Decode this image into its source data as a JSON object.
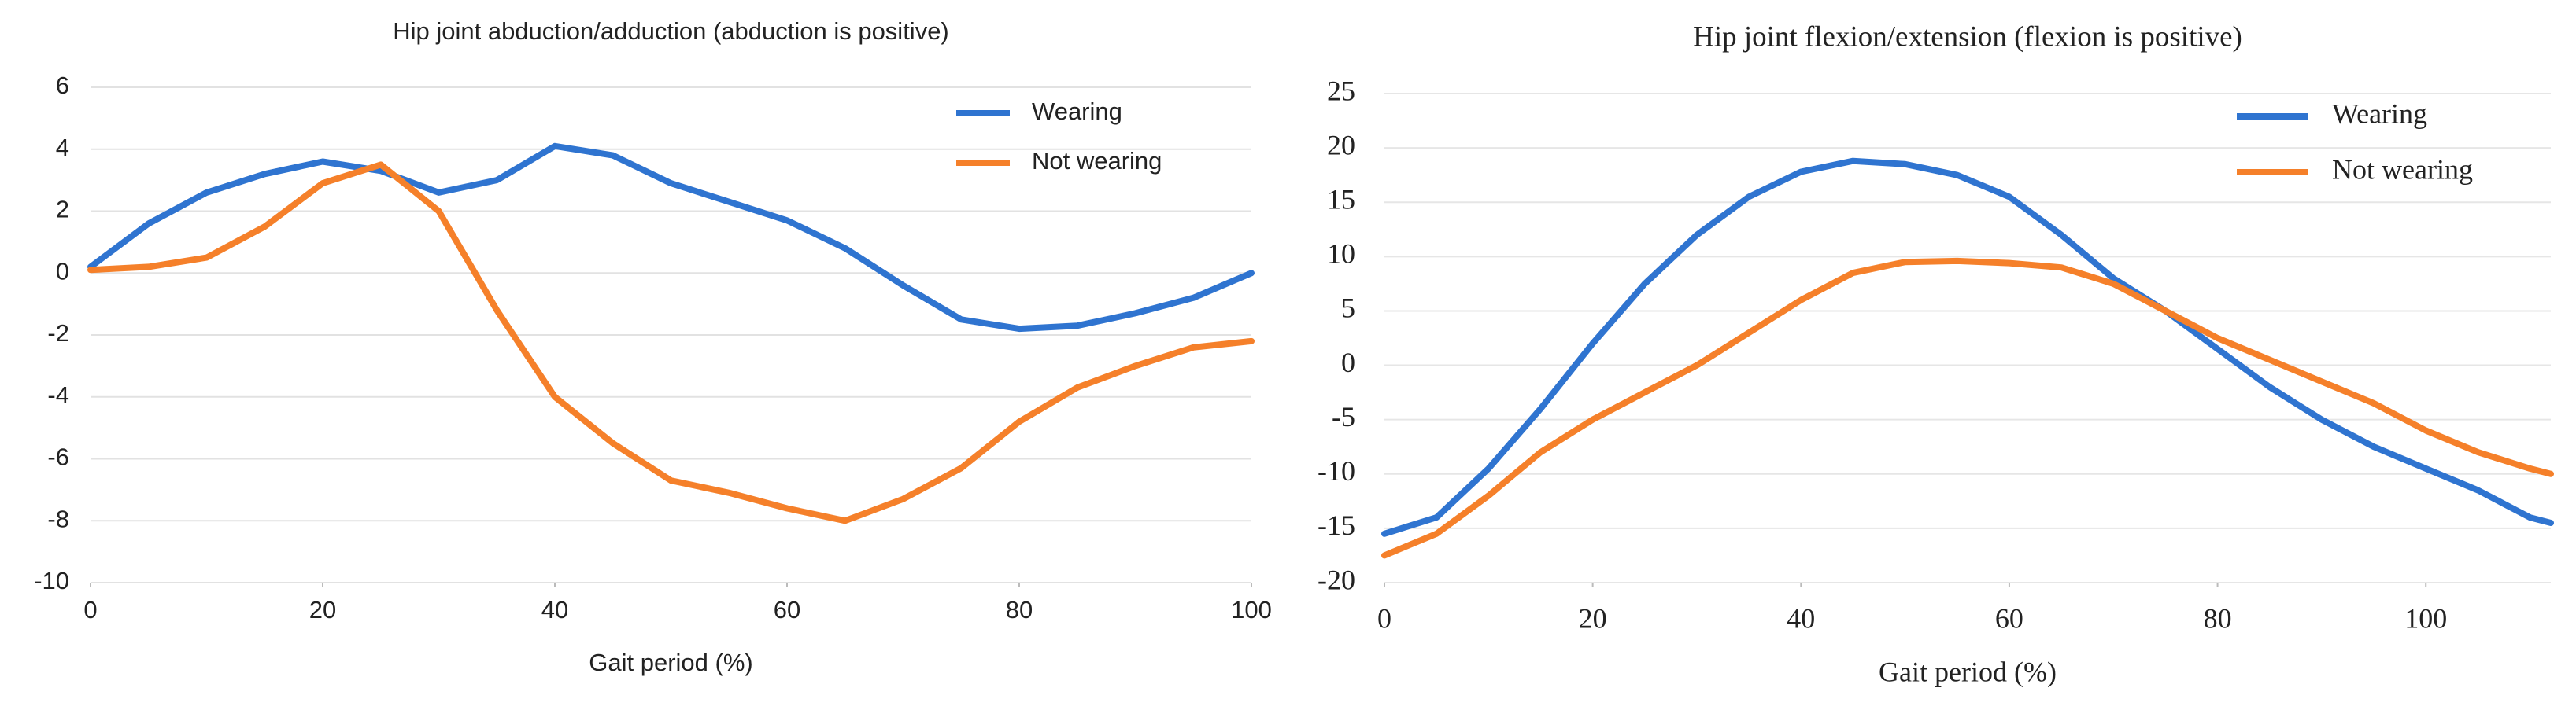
{
  "chart_data": [
    {
      "type": "line",
      "title": "Hip joint abduction/adduction (abduction is positive)",
      "x_label": "Gait period (%)",
      "x": [
        0,
        5,
        10,
        15,
        20,
        25,
        30,
        35,
        40,
        45,
        50,
        55,
        60,
        65,
        70,
        75,
        80,
        85,
        90,
        95,
        100
      ],
      "series": [
        {
          "name": "Wearing",
          "color": "#2f74d0",
          "values": [
            0.2,
            1.6,
            2.6,
            3.2,
            3.6,
            3.3,
            2.6,
            3.0,
            4.1,
            3.8,
            2.9,
            2.3,
            1.7,
            0.8,
            -0.4,
            -1.5,
            -1.8,
            -1.7,
            -1.3,
            -0.8,
            0.0
          ]
        },
        {
          "name": "Not wearing",
          "color": "#f5802a",
          "values": [
            0.1,
            0.2,
            0.5,
            1.5,
            2.9,
            3.5,
            2.0,
            -1.2,
            -4.0,
            -5.5,
            -6.7,
            -7.1,
            -7.6,
            -8.0,
            -7.3,
            -6.3,
            -4.8,
            -3.7,
            -3.0,
            -2.4,
            -2.2
          ]
        }
      ],
      "xlim": [
        0,
        100
      ],
      "xticks": [
        0,
        20,
        40,
        60,
        80,
        100
      ],
      "ylim": [
        -10,
        6
      ],
      "yticks": [
        -10,
        -8,
        -6,
        -4,
        -2,
        0,
        2,
        4,
        6
      ],
      "grid": true,
      "legend": "upper right"
    },
    {
      "type": "line",
      "title": "Hip joint flexion/extension (flexion is positive)",
      "x_label": "Gait period (%)",
      "x": [
        0,
        5,
        10,
        15,
        20,
        25,
        30,
        35,
        40,
        45,
        50,
        55,
        60,
        65,
        70,
        75,
        80,
        85,
        90,
        95,
        100,
        105,
        110,
        112
      ],
      "series": [
        {
          "name": "Wearing",
          "color": "#2f74d0",
          "values": [
            -15.5,
            -14,
            -9.5,
            -4,
            2,
            7.5,
            12,
            15.5,
            17.8,
            18.8,
            18.5,
            17.5,
            15.5,
            12,
            8,
            5,
            1.5,
            -2,
            -5,
            -7.5,
            -9.5,
            -11.5,
            -14,
            -14.5
          ]
        },
        {
          "name": "Not wearing",
          "color": "#f5802a",
          "values": [
            -17.5,
            -15.5,
            -12,
            -8,
            -5,
            -2.5,
            0,
            3,
            6,
            8.5,
            9.5,
            9.6,
            9.4,
            9,
            7.5,
            5,
            2.5,
            0.5,
            -1.5,
            -3.5,
            -6,
            -8,
            -9.5,
            -10
          ]
        }
      ],
      "xlim": [
        0,
        112
      ],
      "xticks": [
        0,
        20,
        40,
        60,
        80,
        100
      ],
      "ylim": [
        -20,
        25
      ],
      "yticks": [
        -20,
        -15,
        -10,
        -5,
        0,
        5,
        10,
        15,
        20,
        25
      ],
      "grid": true,
      "legend": "upper right"
    }
  ]
}
